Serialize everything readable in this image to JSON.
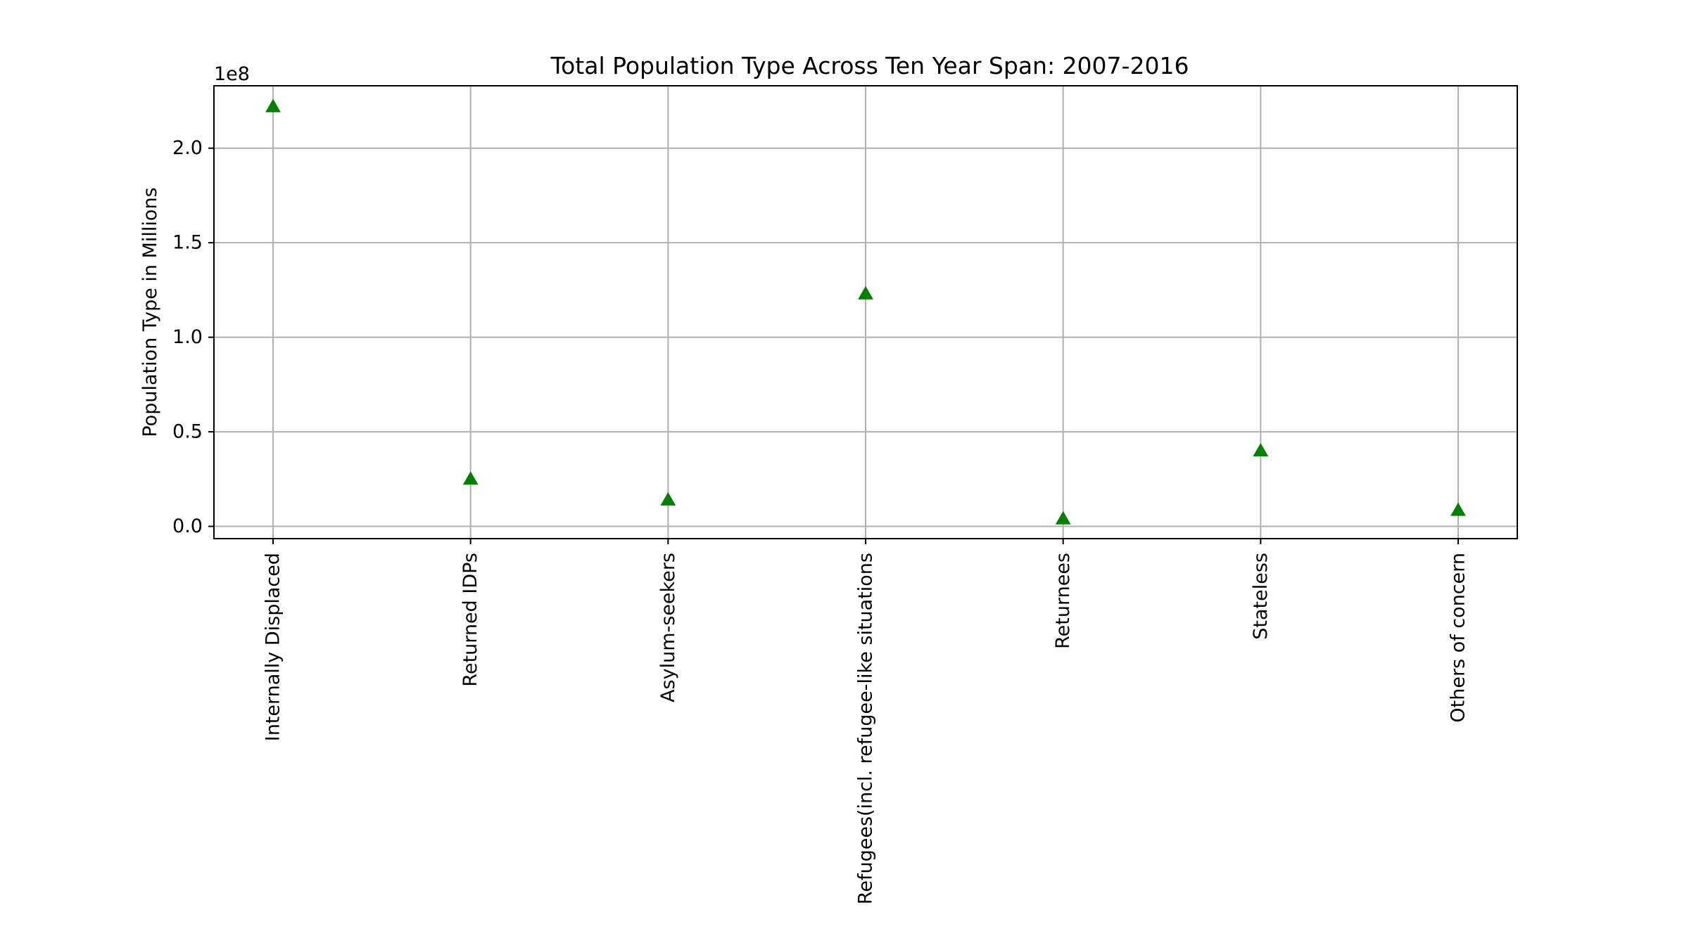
{
  "chart_data": {
    "type": "scatter",
    "title": "Total Population Type Across Ten Year Span: 2007-2016",
    "xlabel": "",
    "ylabel": "Population Type in Millions",
    "y_offset_label": "1e8",
    "categories": [
      "Internally Displaced",
      "Returned IDPs",
      "Asylum-seekers",
      "Refugees(incl. refugee-like situations",
      "Returnees",
      "Stateless",
      "Others of concern"
    ],
    "values": [
      222000000,
      25000000,
      14000000,
      123000000,
      4000000,
      40000000,
      8500000
    ],
    "ylim": [
      -6500000,
      233000000
    ],
    "yticks": [
      0.0,
      0.5,
      1.0,
      1.5,
      2.0
    ],
    "ytick_labels": [
      "0.0",
      "0.5",
      "1.0",
      "1.5",
      "2.0"
    ],
    "ytick_scale": 100000000,
    "marker": "triangle-up",
    "marker_color": "#008000",
    "grid": true
  }
}
